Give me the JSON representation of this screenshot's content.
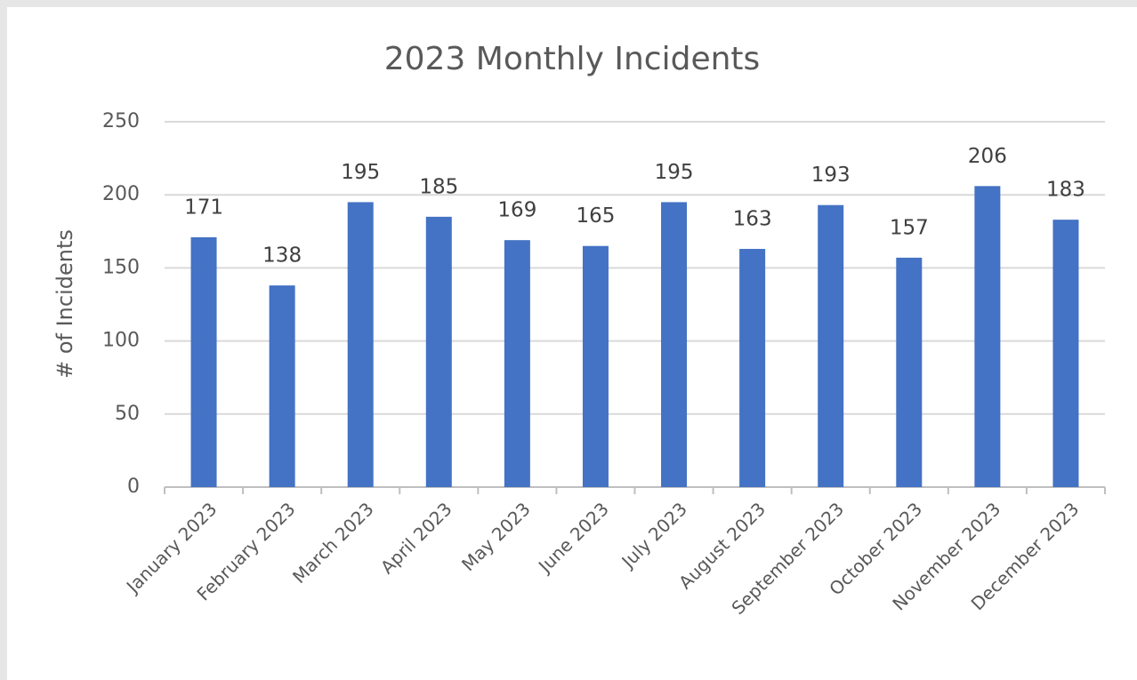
{
  "chart_data": {
    "type": "bar",
    "title": "2023 Monthly Incidents",
    "y_label": "# of Incidents",
    "categories": [
      "January 2023",
      "February 2023",
      "March 2023",
      "April 2023",
      "May 2023",
      "June 2023",
      "July 2023",
      "August 2023",
      "September 2023",
      "October 2023",
      "November 2023",
      "December 2023"
    ],
    "values": [
      171,
      138,
      195,
      185,
      169,
      165,
      195,
      163,
      193,
      157,
      206,
      183
    ],
    "color": "#4472c4",
    "ylim": [
      0,
      250
    ],
    "yticks": [
      0,
      50,
      100,
      150,
      200,
      250
    ],
    "grid": true
  }
}
